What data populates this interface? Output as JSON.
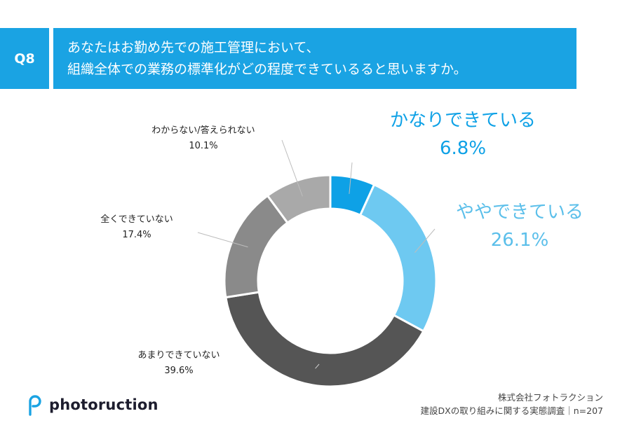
{
  "question": {
    "number": "Q8",
    "line1": "あなたはお勤め先での施工管理において、",
    "line2": "組織全体での業務の標準化がどの程度できているると思いますか。"
  },
  "chart_data": {
    "type": "pie",
    "donut": true,
    "categories": [
      "かなりできている",
      "ややできている",
      "あまりできていない",
      "全くできていない",
      "わからない/答えられない"
    ],
    "values": [
      6.8,
      26.1,
      39.6,
      17.4,
      10.1
    ],
    "value_labels": [
      "6.8%",
      "26.1%",
      "39.6%",
      "17.4%",
      "10.1%"
    ],
    "colors": [
      "#0ea1e6",
      "#6ec9f1",
      "#555555",
      "#8a8a8a",
      "#a9a9a9"
    ],
    "start": "top, clockwise"
  },
  "logo": {
    "text": "photoruction",
    "icon": "photoruction-p-logo-icon"
  },
  "credit": {
    "line1": "株式会社フォトラクション",
    "line2": "建設DXの取り組みに関する実態調査｜n=207"
  }
}
